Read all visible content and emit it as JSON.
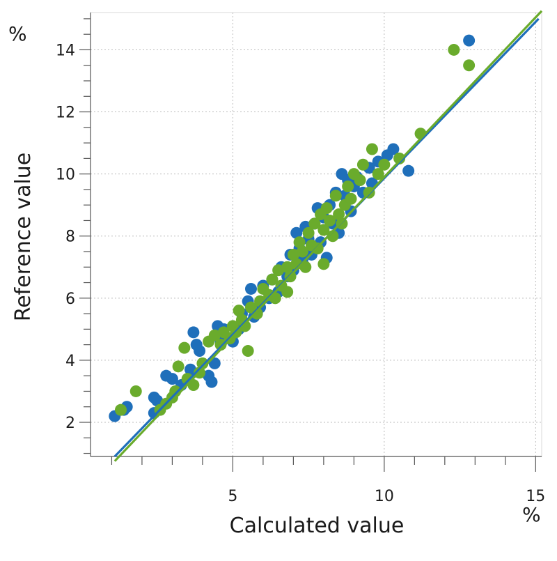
{
  "chart_data": {
    "type": "scatter",
    "title": "",
    "xlabel": "Calculated value",
    "ylabel": "Reference value",
    "x_unit": "%",
    "y_unit": "%",
    "xlim": [
      0.3,
      15.2
    ],
    "ylim": [
      0.9,
      15.2
    ],
    "x_ticks": [
      5,
      10,
      15
    ],
    "y_ticks": [
      2,
      4,
      6,
      8,
      10,
      12,
      14
    ],
    "grid": true,
    "legend": "none",
    "colors": {
      "series_a": "#1f6fba",
      "series_b": "#6aab2c",
      "grid": "#bbbbbb",
      "axis": "#555555"
    },
    "series": [
      {
        "color": "#1f6fba",
        "fit_line": {
          "x": [
            1.1,
            15.1
          ],
          "y": [
            0.9,
            15.0
          ]
        },
        "points": [
          [
            1.1,
            2.2
          ],
          [
            1.5,
            2.5
          ],
          [
            1.4,
            2.4
          ],
          [
            2.4,
            2.3
          ],
          [
            2.4,
            2.8
          ],
          [
            2.5,
            2.7
          ],
          [
            2.8,
            3.5
          ],
          [
            3.0,
            3.4
          ],
          [
            3.3,
            3.2
          ],
          [
            3.6,
            3.7
          ],
          [
            3.7,
            4.9
          ],
          [
            3.8,
            4.5
          ],
          [
            3.9,
            4.3
          ],
          [
            4.2,
            3.5
          ],
          [
            4.3,
            3.3
          ],
          [
            4.4,
            3.9
          ],
          [
            4.5,
            5.1
          ],
          [
            4.6,
            4.6
          ],
          [
            4.7,
            5.0
          ],
          [
            5.0,
            4.6
          ],
          [
            5.2,
            5.0
          ],
          [
            5.3,
            5.5
          ],
          [
            5.5,
            5.9
          ],
          [
            5.6,
            6.3
          ],
          [
            5.7,
            5.4
          ],
          [
            5.9,
            5.7
          ],
          [
            6.0,
            6.4
          ],
          [
            6.2,
            6.0
          ],
          [
            6.3,
            6.6
          ],
          [
            6.5,
            6.2
          ],
          [
            6.6,
            7.0
          ],
          [
            6.8,
            6.7
          ],
          [
            6.9,
            7.4
          ],
          [
            7.0,
            6.9
          ],
          [
            7.1,
            8.1
          ],
          [
            7.2,
            7.6
          ],
          [
            7.3,
            7.2
          ],
          [
            7.4,
            8.3
          ],
          [
            7.5,
            7.9
          ],
          [
            7.6,
            7.4
          ],
          [
            7.7,
            8.4
          ],
          [
            7.8,
            8.9
          ],
          [
            7.9,
            7.8
          ],
          [
            8.0,
            8.6
          ],
          [
            8.1,
            7.3
          ],
          [
            8.2,
            9.0
          ],
          [
            8.3,
            8.4
          ],
          [
            8.4,
            9.4
          ],
          [
            8.5,
            8.1
          ],
          [
            8.6,
            10.0
          ],
          [
            8.7,
            9.3
          ],
          [
            8.8,
            9.8
          ],
          [
            8.9,
            8.8
          ],
          [
            9.0,
            9.6
          ],
          [
            9.1,
            9.9
          ],
          [
            9.3,
            9.4
          ],
          [
            9.5,
            10.2
          ],
          [
            9.6,
            9.7
          ],
          [
            9.8,
            10.4
          ],
          [
            10.1,
            10.6
          ],
          [
            10.3,
            10.8
          ],
          [
            10.8,
            10.1
          ],
          [
            12.8,
            14.3
          ]
        ]
      },
      {
        "color": "#6aab2c",
        "fit_line": {
          "x": [
            1.1,
            15.2
          ],
          "y": [
            0.75,
            15.25
          ]
        },
        "points": [
          [
            1.3,
            2.4
          ],
          [
            1.8,
            3.0
          ],
          [
            2.6,
            2.4
          ],
          [
            2.8,
            2.6
          ],
          [
            3.0,
            2.8
          ],
          [
            3.1,
            3.0
          ],
          [
            3.2,
            3.8
          ],
          [
            3.4,
            4.4
          ],
          [
            3.5,
            3.4
          ],
          [
            3.7,
            3.2
          ],
          [
            3.9,
            3.6
          ],
          [
            4.0,
            3.9
          ],
          [
            4.2,
            4.6
          ],
          [
            4.4,
            4.8
          ],
          [
            4.6,
            4.5
          ],
          [
            4.7,
            4.9
          ],
          [
            4.9,
            4.7
          ],
          [
            5.0,
            5.1
          ],
          [
            5.1,
            4.9
          ],
          [
            5.2,
            5.6
          ],
          [
            5.3,
            5.3
          ],
          [
            5.4,
            5.1
          ],
          [
            5.5,
            4.3
          ],
          [
            5.6,
            5.7
          ],
          [
            5.8,
            5.5
          ],
          [
            5.9,
            5.9
          ],
          [
            6.0,
            6.3
          ],
          [
            6.2,
            6.1
          ],
          [
            6.3,
            6.6
          ],
          [
            6.4,
            6.0
          ],
          [
            6.5,
            6.9
          ],
          [
            6.6,
            6.4
          ],
          [
            6.8,
            7.0
          ],
          [
            6.9,
            6.7
          ],
          [
            7.0,
            7.4
          ],
          [
            7.1,
            7.1
          ],
          [
            7.2,
            7.8
          ],
          [
            7.3,
            7.5
          ],
          [
            7.4,
            7.0
          ],
          [
            7.5,
            8.1
          ],
          [
            7.6,
            7.7
          ],
          [
            7.7,
            8.4
          ],
          [
            7.8,
            7.6
          ],
          [
            7.9,
            8.7
          ],
          [
            8.0,
            8.2
          ],
          [
            8.1,
            8.9
          ],
          [
            8.2,
            8.5
          ],
          [
            8.3,
            8.0
          ],
          [
            8.4,
            9.3
          ],
          [
            8.5,
            8.7
          ],
          [
            8.6,
            8.4
          ],
          [
            8.7,
            9.0
          ],
          [
            8.8,
            9.6
          ],
          [
            8.9,
            9.2
          ],
          [
            9.0,
            10.0
          ],
          [
            9.2,
            9.8
          ],
          [
            9.3,
            10.3
          ],
          [
            9.5,
            9.4
          ],
          [
            9.6,
            10.8
          ],
          [
            9.8,
            10.0
          ],
          [
            10.0,
            10.3
          ],
          [
            10.5,
            10.5
          ],
          [
            11.2,
            11.3
          ],
          [
            12.3,
            14.0
          ],
          [
            12.8,
            13.5
          ],
          [
            8.0,
            7.1
          ],
          [
            6.8,
            6.2
          ]
        ]
      }
    ]
  }
}
